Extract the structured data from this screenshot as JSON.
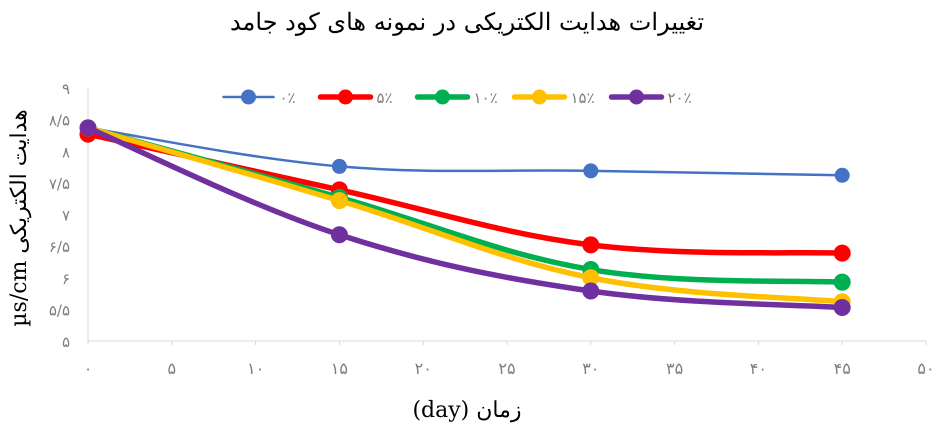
{
  "chart_data": {
    "type": "line",
    "title": "تغییرات هدایت الکتریکی در نمونه های کود جامد",
    "xlabel": "(day) زمان",
    "ylabel": "µs/cm هدایت الکتریکی",
    "x": [
      0,
      15,
      30,
      45
    ],
    "xlim": [
      0,
      50
    ],
    "ylim": [
      5,
      9
    ],
    "x_ticks": [
      "۰",
      "۵",
      "۱۰",
      "۱۵",
      "۲۰",
      "۲۵",
      "۳۰",
      "۳۵",
      "۴۰",
      "۴۵",
      "۵۰"
    ],
    "y_ticks": [
      "۵",
      "۵/۵",
      "۶",
      "۶/۵",
      "۷",
      "۷/۵",
      "۸",
      "۸/۵",
      "۹"
    ],
    "grid": false,
    "legend_position": "top",
    "smooth": true,
    "series": [
      {
        "name": "۰٪",
        "color": "#4472C4",
        "values": [
          8.37,
          7.76,
          7.69,
          7.62
        ],
        "line_width": "thin"
      },
      {
        "name": "۵٪",
        "color": "#FF0000",
        "values": [
          8.27,
          7.39,
          6.52,
          6.39
        ],
        "line_width": "thick"
      },
      {
        "name": "۱۰٪",
        "color": "#00B050",
        "values": [
          8.37,
          7.27,
          6.13,
          5.93
        ],
        "line_width": "thick"
      },
      {
        "name": "۱۵٪",
        "color": "#FFC000",
        "values": [
          8.37,
          7.22,
          6.0,
          5.62
        ],
        "line_width": "thick"
      },
      {
        "name": "۲۰٪",
        "color": "#7030A0",
        "values": [
          8.37,
          6.68,
          5.79,
          5.53
        ],
        "line_width": "thick"
      }
    ]
  }
}
